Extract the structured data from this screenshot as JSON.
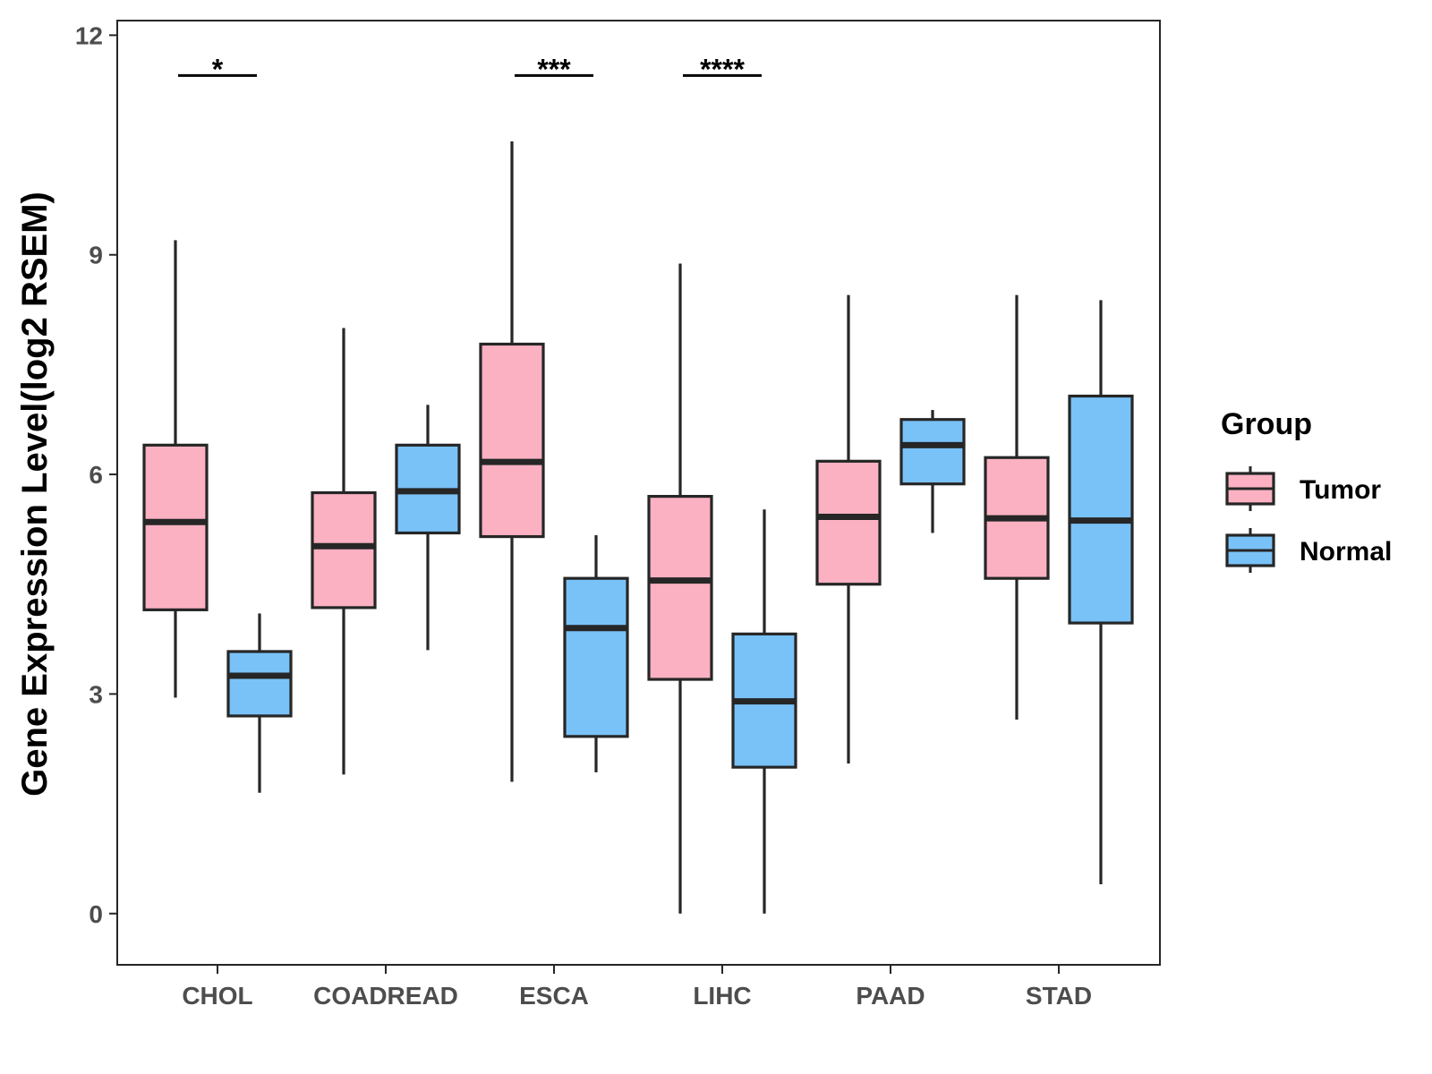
{
  "chart_data": {
    "type": "boxplot",
    "title": "",
    "xlabel": "",
    "ylabel": "Gene Expression Level(log2 RSEM)",
    "ylim": [
      -0.7,
      12.2
    ],
    "yticks": [
      0,
      3,
      6,
      9,
      12
    ],
    "ytick_labels": [
      "0",
      "3",
      "6",
      "9",
      "12"
    ],
    "categories": [
      "CHOL",
      "COADREAD",
      "ESCA",
      "LIHC",
      "PAAD",
      "STAD"
    ],
    "legend": {
      "title": "Group",
      "position": "right",
      "entries": [
        "Tumor",
        "Normal"
      ]
    },
    "colors": {
      "Tumor": "#FBB1C2",
      "Normal": "#79C2F8",
      "outline": "#262626"
    },
    "series": [
      {
        "name": "Tumor",
        "boxes": [
          {
            "category": "CHOL",
            "min": 2.95,
            "q1": 4.15,
            "median": 5.35,
            "q3": 6.4,
            "max": 9.2
          },
          {
            "category": "COADREAD",
            "min": 1.9,
            "q1": 4.18,
            "median": 5.02,
            "q3": 5.75,
            "max": 8.0
          },
          {
            "category": "ESCA",
            "min": 1.8,
            "q1": 5.15,
            "median": 6.17,
            "q3": 7.78,
            "max": 10.55
          },
          {
            "category": "LIHC",
            "min": 0.0,
            "q1": 3.2,
            "median": 4.55,
            "q3": 5.7,
            "max": 8.88
          },
          {
            "category": "PAAD",
            "min": 2.05,
            "q1": 4.5,
            "median": 5.42,
            "q3": 6.18,
            "max": 8.45
          },
          {
            "category": "STAD",
            "min": 2.65,
            "q1": 4.58,
            "median": 5.4,
            "q3": 6.23,
            "max": 8.45
          }
        ]
      },
      {
        "name": "Normal",
        "boxes": [
          {
            "category": "CHOL",
            "min": 1.65,
            "q1": 2.7,
            "median": 3.25,
            "q3": 3.58,
            "max": 4.1
          },
          {
            "category": "COADREAD",
            "min": 3.6,
            "q1": 5.2,
            "median": 5.77,
            "q3": 6.4,
            "max": 6.95
          },
          {
            "category": "ESCA",
            "min": 1.93,
            "q1": 2.42,
            "median": 3.9,
            "q3": 4.58,
            "max": 5.17
          },
          {
            "category": "LIHC",
            "min": 0.0,
            "q1": 2.0,
            "median": 2.9,
            "q3": 3.82,
            "max": 5.52
          },
          {
            "category": "PAAD",
            "min": 5.2,
            "q1": 5.87,
            "median": 6.4,
            "q3": 6.75,
            "max": 6.88
          },
          {
            "category": "STAD",
            "min": 0.4,
            "q1": 3.97,
            "median": 5.37,
            "q3": 7.07,
            "max": 8.38
          }
        ]
      }
    ],
    "significance": [
      {
        "category": "CHOL",
        "label": "*",
        "y": 11.45
      },
      {
        "category": "ESCA",
        "label": "***",
        "y": 11.45
      },
      {
        "category": "LIHC",
        "label": "****",
        "y": 11.45
      }
    ]
  }
}
